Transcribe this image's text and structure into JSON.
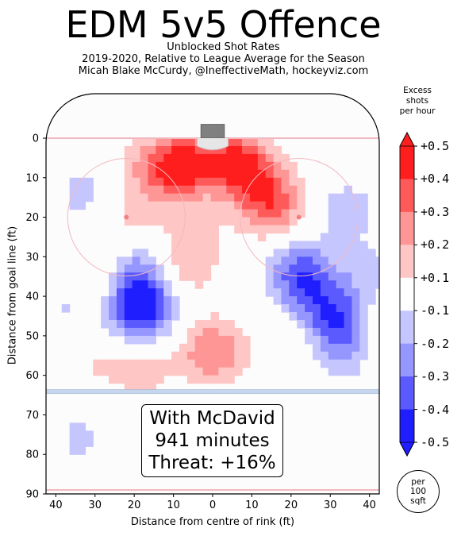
{
  "title": "EDM 5v5 Offence",
  "subtitle_lines": [
    "Unblocked Shot Rates",
    "2019-2020, Relative to League Average for the Season",
    "Micah Blake McCurdy, @IneffectiveMath, hockeyviz.com"
  ],
  "annotation": {
    "line1": "With McDavid",
    "line2": "941 minutes",
    "line3": "Threat: +16%"
  },
  "colorbar": {
    "title_lines": [
      "Excess",
      "shots",
      "per hour"
    ],
    "ticks": [
      "+0.5",
      "+0.4",
      "+0.3",
      "+0.2",
      "+0.1",
      "-0.1",
      "-0.2",
      "-0.3",
      "-0.4",
      "-0.5"
    ],
    "colors": [
      "#ff1e1e",
      "#ff5a5a",
      "#ff9696",
      "#ffc6c6",
      "#ffffff",
      "#c6c6ff",
      "#9696ff",
      "#5a5aff",
      "#1e1eff"
    ],
    "unit_lines": [
      "per",
      "100",
      "sqft"
    ]
  },
  "chart_data": {
    "type": "heatmap",
    "title": "EDM 5v5 Offence",
    "xlabel": "Distance from centre of rink (ft)",
    "ylabel": "Distance from goal line (ft)",
    "xlim": [
      -42.5,
      42.5
    ],
    "ylim": [
      0,
      90
    ],
    "x_tick_labels": [
      "40",
      "30",
      "20",
      "10",
      "0",
      "10",
      "20",
      "30",
      "40"
    ],
    "y_ticks": [
      0,
      10,
      20,
      30,
      40,
      50,
      60,
      70,
      80,
      90
    ],
    "colorbar_range": [
      -0.5,
      0.5
    ],
    "hotspots": [
      {
        "x": -8,
        "y": 7,
        "value": 0.45
      },
      {
        "x": 6,
        "y": 6,
        "value": 0.4
      },
      {
        "x": -17,
        "y": 8,
        "value": 0.15
      },
      {
        "x": 13,
        "y": 13,
        "value": 0.25
      },
      {
        "x": -5,
        "y": 26,
        "value": 0.12
      },
      {
        "x": -8,
        "y": 34,
        "value": 0.15
      },
      {
        "x": 16,
        "y": 19,
        "value": 0.2
      },
      {
        "x": -29,
        "y": 35,
        "value": 0.15
      },
      {
        "x": -22,
        "y": 20,
        "value": 0.12
      },
      {
        "x": 0,
        "y": 54,
        "value": 0.3
      },
      {
        "x": -18,
        "y": 58,
        "value": 0.15
      },
      {
        "x": -30,
        "y": 56,
        "value": 0.1
      },
      {
        "x": 20,
        "y": 54,
        "value": 0.1
      },
      {
        "x": 40,
        "y": 48,
        "value": 0.15
      },
      {
        "x": -18,
        "y": 44,
        "value": -0.45
      },
      {
        "x": -19,
        "y": 35,
        "value": -0.3
      },
      {
        "x": -38,
        "y": 34,
        "value": -0.1
      },
      {
        "x": -32,
        "y": 14,
        "value": -0.15
      },
      {
        "x": -36,
        "y": 45,
        "value": -0.1
      },
      {
        "x": 22,
        "y": 34,
        "value": -0.35
      },
      {
        "x": 34,
        "y": 48,
        "value": -0.35
      },
      {
        "x": 28,
        "y": 42,
        "value": -0.2
      },
      {
        "x": 34,
        "y": 18,
        "value": -0.15
      },
      {
        "x": 32,
        "y": 56,
        "value": -0.1
      },
      {
        "x": 40,
        "y": 34,
        "value": -0.12
      },
      {
        "x": -34,
        "y": 76,
        "value": -0.12
      }
    ]
  }
}
